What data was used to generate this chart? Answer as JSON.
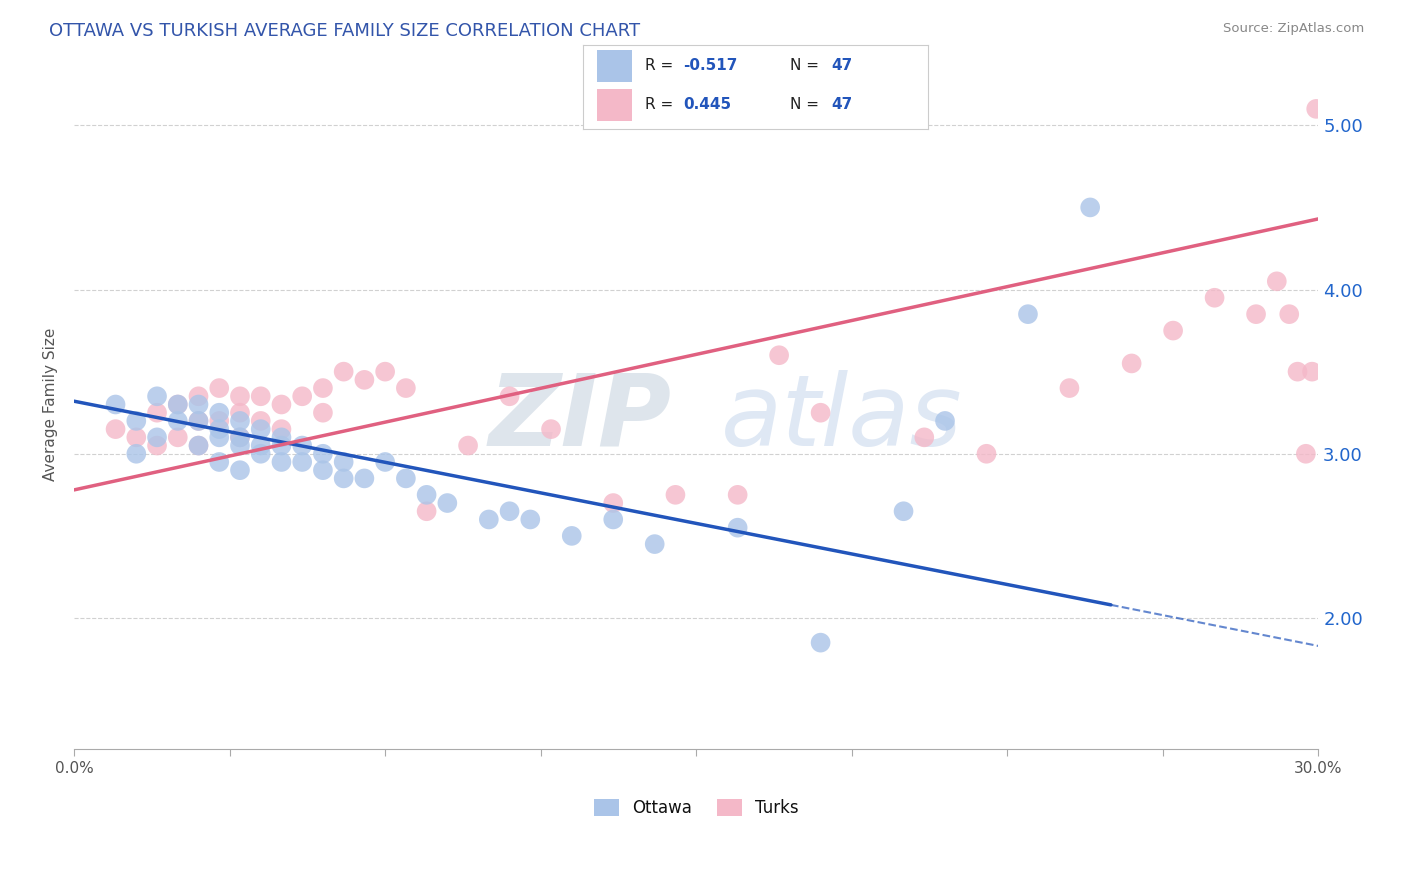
{
  "title": "OTTAWA VS TURKISH AVERAGE FAMILY SIZE CORRELATION CHART",
  "source": "Source: ZipAtlas.com",
  "ylabel": "Average Family Size",
  "xlim": [
    0.0,
    30.0
  ],
  "ylim": [
    1.2,
    5.4
  ],
  "yticks": [
    2.0,
    3.0,
    4.0,
    5.0
  ],
  "background_color": "#ffffff",
  "grid_color": "#cccccc",
  "ottawa_color": "#aac4e8",
  "turks_color": "#f4b8c8",
  "ottawa_line_color": "#2255bb",
  "turks_line_color": "#e06080",
  "watermark_zip": "ZIP",
  "watermark_atlas": "atlas",
  "legend_r_ottawa": "-0.517",
  "legend_n_ottawa": "47",
  "legend_r_turks": "0.445",
  "legend_n_turks": "47",
  "ottawa_points_x": [
    1.0,
    1.5,
    1.5,
    2.0,
    2.0,
    2.5,
    2.5,
    3.0,
    3.0,
    3.0,
    3.5,
    3.5,
    3.5,
    3.5,
    4.0,
    4.0,
    4.0,
    4.0,
    4.5,
    4.5,
    4.5,
    5.0,
    5.0,
    5.0,
    5.5,
    5.5,
    6.0,
    6.0,
    6.5,
    6.5,
    7.0,
    7.5,
    8.0,
    8.5,
    9.0,
    10.0,
    10.5,
    11.0,
    12.0,
    13.0,
    14.0,
    16.0,
    18.0,
    20.0,
    21.0,
    23.0,
    24.5
  ],
  "ottawa_points_y": [
    3.3,
    3.2,
    3.0,
    3.35,
    3.1,
    3.3,
    3.2,
    3.3,
    3.2,
    3.05,
    3.25,
    3.15,
    3.1,
    2.95,
    3.2,
    3.1,
    3.05,
    2.9,
    3.15,
    3.05,
    3.0,
    3.1,
    3.05,
    2.95,
    3.05,
    2.95,
    3.0,
    2.9,
    2.95,
    2.85,
    2.85,
    2.95,
    2.85,
    2.75,
    2.7,
    2.6,
    2.65,
    2.6,
    2.5,
    2.6,
    2.45,
    2.55,
    1.85,
    2.65,
    3.2,
    3.85,
    4.5
  ],
  "turks_points_x": [
    1.0,
    1.5,
    2.0,
    2.0,
    2.5,
    2.5,
    3.0,
    3.0,
    3.0,
    3.5,
    3.5,
    4.0,
    4.0,
    4.0,
    4.5,
    4.5,
    5.0,
    5.0,
    5.5,
    6.0,
    6.0,
    6.5,
    7.0,
    7.5,
    8.0,
    8.5,
    9.5,
    10.5,
    11.5,
    13.0,
    14.5,
    16.0,
    17.0,
    18.0,
    20.5,
    22.0,
    24.0,
    25.5,
    26.5,
    27.5,
    28.5,
    29.0,
    29.3,
    29.5,
    29.7,
    29.85,
    29.95
  ],
  "turks_points_y": [
    3.15,
    3.1,
    3.25,
    3.05,
    3.3,
    3.1,
    3.35,
    3.2,
    3.05,
    3.4,
    3.2,
    3.35,
    3.25,
    3.1,
    3.35,
    3.2,
    3.3,
    3.15,
    3.35,
    3.4,
    3.25,
    3.5,
    3.45,
    3.5,
    3.4,
    2.65,
    3.05,
    3.35,
    3.15,
    2.7,
    2.75,
    2.75,
    3.6,
    3.25,
    3.1,
    3.0,
    3.4,
    3.55,
    3.75,
    3.95,
    3.85,
    4.05,
    3.85,
    3.5,
    3.0,
    3.5,
    5.1
  ],
  "ott_line_x0": 0.0,
  "ott_line_y0": 3.32,
  "ott_line_x1": 25.0,
  "ott_line_y1": 2.08,
  "ott_dash_x0": 25.0,
  "ott_dash_y0": 2.08,
  "ott_dash_x1": 30.0,
  "ott_dash_y1": 1.83,
  "turk_line_x0": 0.0,
  "turk_line_y0": 2.78,
  "turk_line_x1": 30.0,
  "turk_line_y1": 4.43
}
